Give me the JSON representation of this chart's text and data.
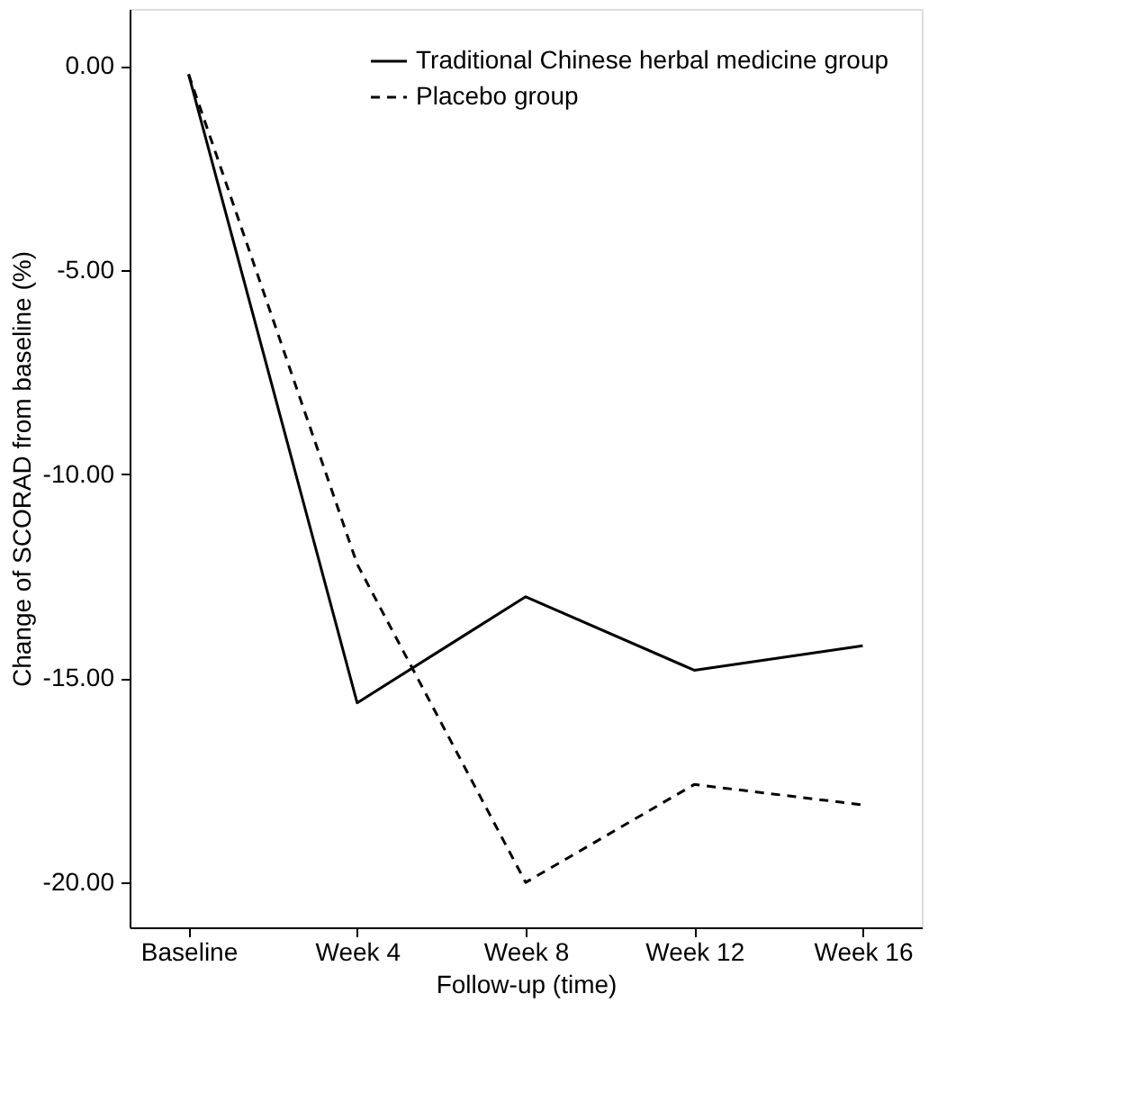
{
  "chart_data": {
    "type": "line",
    "xlabel": "Follow-up (time)",
    "ylabel": "Change of SCORAD from baseline (%)",
    "categories": [
      "Baseline",
      "Week 4",
      "Week 8",
      "Week 12",
      "Week 16"
    ],
    "ylim": [
      -21.1,
      1.4
    ],
    "yticks": [
      {
        "value": 0,
        "label": "0.00"
      },
      {
        "value": -5,
        "label": "-5.00"
      },
      {
        "value": -10,
        "label": "-10.00"
      },
      {
        "value": -15,
        "label": "-15.00"
      },
      {
        "value": -20,
        "label": "-20.00"
      }
    ],
    "series": [
      {
        "name": "Traditional Chinese herbal medicine group",
        "color": "#000000",
        "line_style": "solid",
        "values": [
          -0.2,
          -15.6,
          -13.0,
          -14.8,
          -14.2
        ]
      },
      {
        "name": "Placebo group",
        "color": "#000000",
        "line_style": "dashed",
        "values": [
          -0.2,
          -12.2,
          -20.0,
          -17.6,
          -18.1
        ]
      }
    ],
    "grid": false,
    "legend": "top right",
    "marker": "none"
  }
}
